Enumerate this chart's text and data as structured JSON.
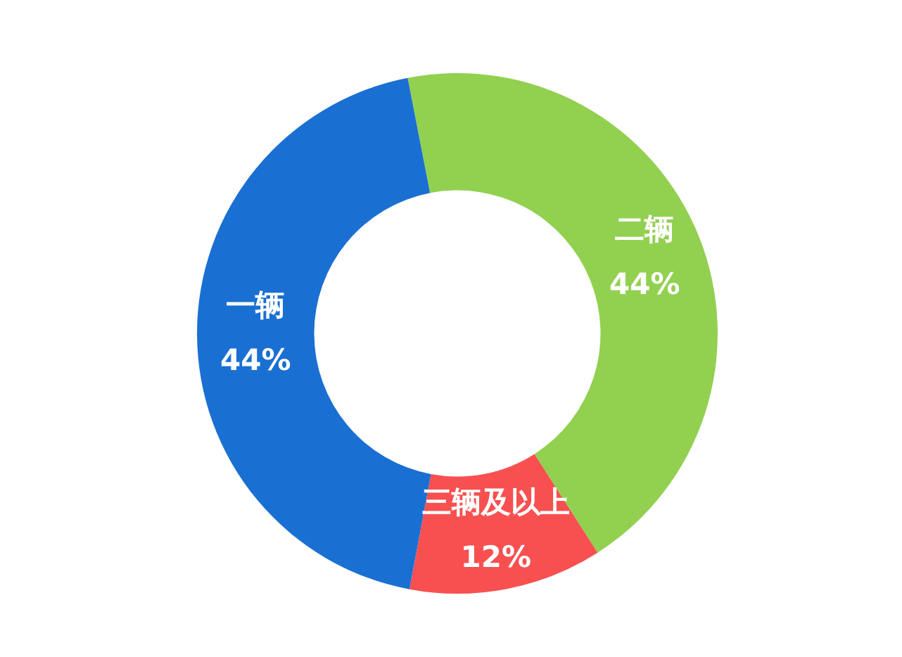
{
  "chart_data": {
    "type": "donut",
    "categories": [
      "二辆",
      "三辆及以上",
      "一辆"
    ],
    "values": [
      44,
      12,
      44
    ],
    "value_labels": [
      "44%",
      "12%",
      "44%"
    ],
    "colors": [
      "#92d050",
      "#f85050",
      "#1a6fd2"
    ],
    "legend": false
  }
}
